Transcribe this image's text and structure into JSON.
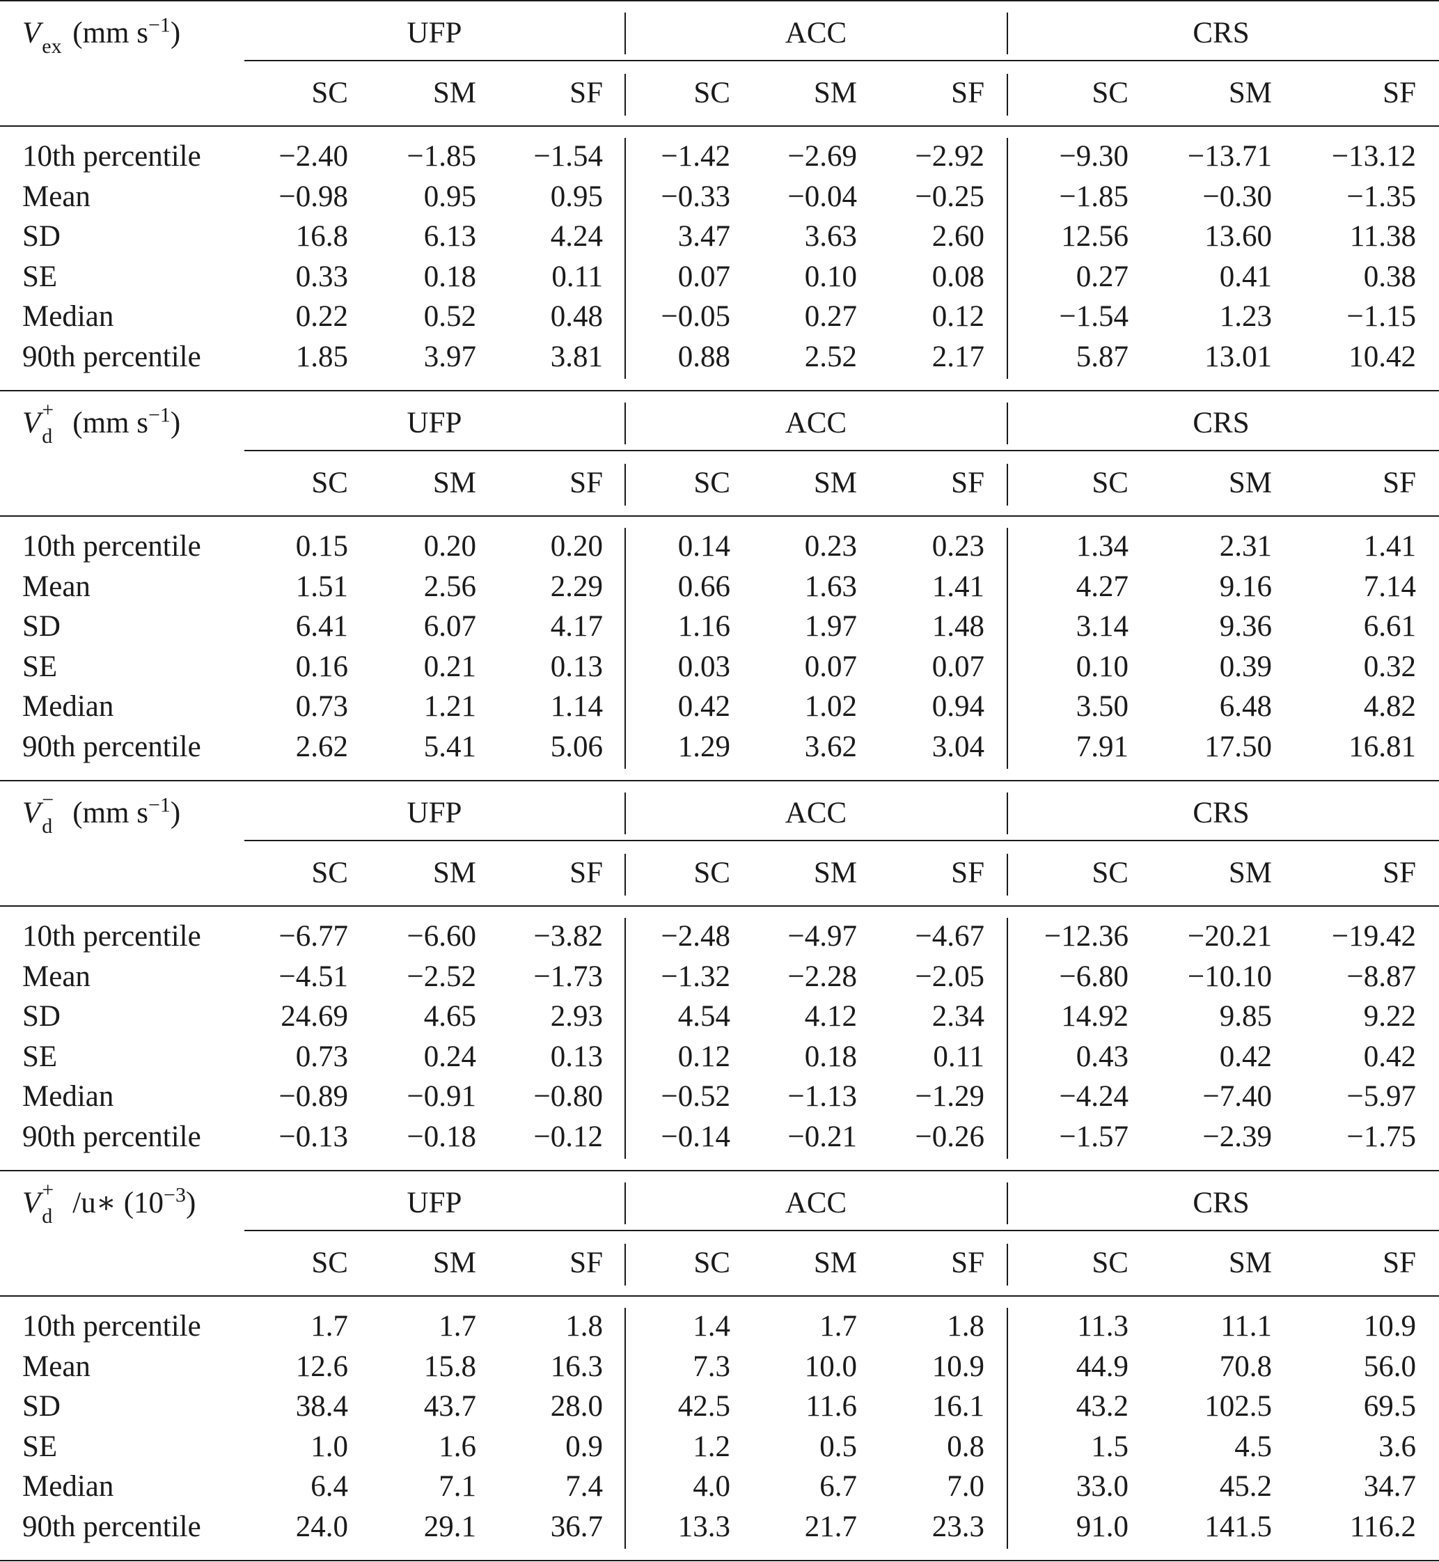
{
  "row_labels": [
    "10th percentile",
    "Mean",
    "SD",
    "SE",
    "Median",
    "90th percentile"
  ],
  "groups": [
    "UFP",
    "ACC",
    "CRS"
  ],
  "subgroups": [
    "SC",
    "SM",
    "SF"
  ],
  "panels": [
    {
      "title": {
        "symbol": "V",
        "sub": "ex",
        "sup": "",
        "rest": "(mm s",
        "rest_sup": "−1",
        "rest_close": ")"
      },
      "values": [
        [
          "−2.40",
          "−1.85",
          "−1.54",
          "−1.42",
          "−2.69",
          "−2.92",
          "−9.30",
          "−13.71",
          "−13.12"
        ],
        [
          "−0.98",
          "0.95",
          "0.95",
          "−0.33",
          "−0.04",
          "−0.25",
          "−1.85",
          "−0.30",
          "−1.35"
        ],
        [
          "16.8",
          "6.13",
          "4.24",
          "3.47",
          "3.63",
          "2.60",
          "12.56",
          "13.60",
          "11.38"
        ],
        [
          "0.33",
          "0.18",
          "0.11",
          "0.07",
          "0.10",
          "0.08",
          "0.27",
          "0.41",
          "0.38"
        ],
        [
          "0.22",
          "0.52",
          "0.48",
          "−0.05",
          "0.27",
          "0.12",
          "−1.54",
          "1.23",
          "−1.15"
        ],
        [
          "1.85",
          "3.97",
          "3.81",
          "0.88",
          "2.52",
          "2.17",
          "5.87",
          "13.01",
          "10.42"
        ]
      ]
    },
    {
      "title": {
        "symbol": "V",
        "sub": "d",
        "sup": "+",
        "rest": "(mm s",
        "rest_sup": "−1",
        "rest_close": ")"
      },
      "values": [
        [
          "0.15",
          "0.20",
          "0.20",
          "0.14",
          "0.23",
          "0.23",
          "1.34",
          "2.31",
          "1.41"
        ],
        [
          "1.51",
          "2.56",
          "2.29",
          "0.66",
          "1.63",
          "1.41",
          "4.27",
          "9.16",
          "7.14"
        ],
        [
          "6.41",
          "6.07",
          "4.17",
          "1.16",
          "1.97",
          "1.48",
          "3.14",
          "9.36",
          "6.61"
        ],
        [
          "0.16",
          "0.21",
          "0.13",
          "0.03",
          "0.07",
          "0.07",
          "0.10",
          "0.39",
          "0.32"
        ],
        [
          "0.73",
          "1.21",
          "1.14",
          "0.42",
          "1.02",
          "0.94",
          "3.50",
          "6.48",
          "4.82"
        ],
        [
          "2.62",
          "5.41",
          "5.06",
          "1.29",
          "3.62",
          "3.04",
          "7.91",
          "17.50",
          "16.81"
        ]
      ]
    },
    {
      "title": {
        "symbol": "V",
        "sub": "d",
        "sup": "−",
        "rest": "(mm s",
        "rest_sup": "−1",
        "rest_close": ")"
      },
      "values": [
        [
          "−6.77",
          "−6.60",
          "−3.82",
          "−2.48",
          "−4.97",
          "−4.67",
          "−12.36",
          "−20.21",
          "−19.42"
        ],
        [
          "−4.51",
          "−2.52",
          "−1.73",
          "−1.32",
          "−2.28",
          "−2.05",
          "−6.80",
          "−10.10",
          "−8.87"
        ],
        [
          "24.69",
          "4.65",
          "2.93",
          "4.54",
          "4.12",
          "2.34",
          "14.92",
          "9.85",
          "9.22"
        ],
        [
          "0.73",
          "0.24",
          "0.13",
          "0.12",
          "0.18",
          "0.11",
          "0.43",
          "0.42",
          "0.42"
        ],
        [
          "−0.89",
          "−0.91",
          "−0.80",
          "−0.52",
          "−1.13",
          "−1.29",
          "−4.24",
          "−7.40",
          "−5.97"
        ],
        [
          "−0.13",
          "−0.18",
          "−0.12",
          "−0.14",
          "−0.21",
          "−0.26",
          "−1.57",
          "−2.39",
          "−1.75"
        ]
      ]
    },
    {
      "title": {
        "symbol": "V",
        "sub": "d",
        "sup": "+",
        "rest": "/u∗ (10",
        "rest_sup": "−3",
        "rest_close": ")"
      },
      "values": [
        [
          "1.7",
          "1.7",
          "1.8",
          "1.4",
          "1.7",
          "1.8",
          "11.3",
          "11.1",
          "10.9"
        ],
        [
          "12.6",
          "15.8",
          "16.3",
          "7.3",
          "10.0",
          "10.9",
          "44.9",
          "70.8",
          "56.0"
        ],
        [
          "38.4",
          "43.7",
          "28.0",
          "42.5",
          "11.6",
          "16.1",
          "43.2",
          "102.5",
          "69.5"
        ],
        [
          "1.0",
          "1.6",
          "0.9",
          "1.2",
          "0.5",
          "0.8",
          "1.5",
          "4.5",
          "3.6"
        ],
        [
          "6.4",
          "7.1",
          "7.4",
          "4.0",
          "6.7",
          "7.0",
          "33.0",
          "45.2",
          "34.7"
        ],
        [
          "24.0",
          "29.1",
          "36.7",
          "13.3",
          "21.7",
          "23.3",
          "91.0",
          "141.5",
          "116.2"
        ]
      ]
    }
  ]
}
